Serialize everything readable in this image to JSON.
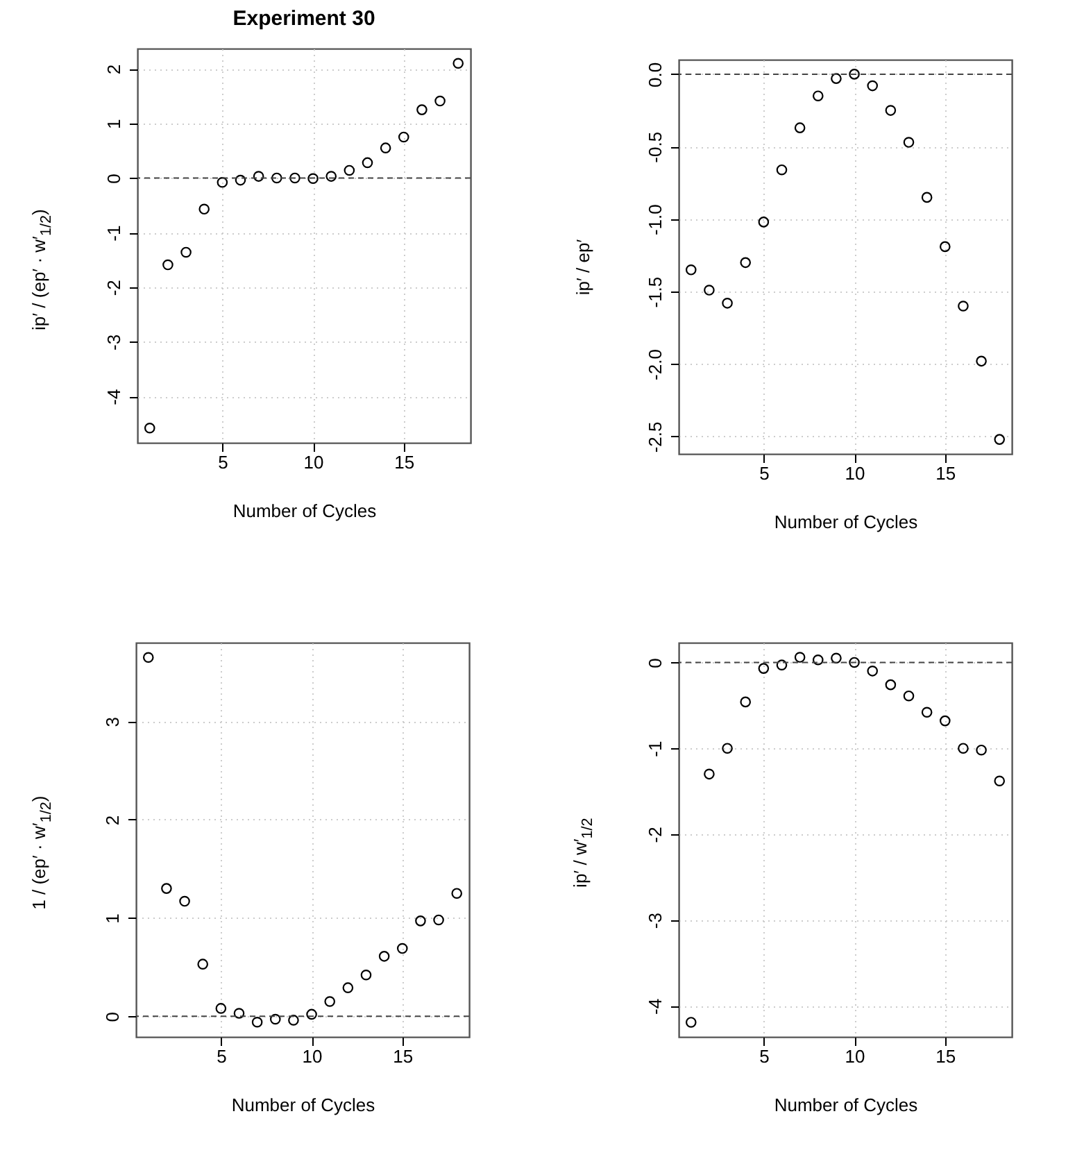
{
  "chart_data": [
    {
      "type": "scatter",
      "title": "Experiment 30",
      "xlabel": "Number of Cycles",
      "ylabel": "ip′ / (ep′ · w′$_{1/2}$)",
      "x": [
        1,
        2,
        3,
        4,
        5,
        6,
        7,
        8,
        9,
        10,
        11,
        12,
        13,
        14,
        15,
        16,
        17,
        18
      ],
      "values": [
        -4.58,
        -1.59,
        -1.36,
        -0.57,
        -0.08,
        -0.04,
        0.03,
        0,
        0,
        -0.01,
        0.03,
        0.14,
        0.28,
        0.55,
        0.75,
        1.25,
        1.41,
        2.1
      ],
      "color": "#000000",
      "marker": "circle",
      "xlim": [
        0.32,
        18.68
      ],
      "xticks": [
        5,
        10,
        15
      ],
      "ylim": [
        -4.85,
        2.37
      ],
      "yticks": [
        -4,
        -3,
        -2,
        -1,
        0,
        1,
        2
      ],
      "grid": true,
      "ref_lines": [
        {
          "axis": "y",
          "value": 0,
          "color": "#444444",
          "line_style": "dashed"
        }
      ]
    },
    {
      "type": "scatter",
      "xlabel": "Number of Cycles",
      "ylabel": "ip′ / ep′",
      "x": [
        1,
        2,
        3,
        4,
        5,
        6,
        7,
        8,
        9,
        10,
        11,
        12,
        13,
        14,
        15,
        16,
        17,
        18
      ],
      "values": [
        -1.35,
        -1.49,
        -1.58,
        -1.3,
        -1.02,
        -0.66,
        -0.37,
        -0.15,
        -0.03,
        0,
        -0.08,
        -0.25,
        -0.47,
        -0.85,
        -1.19,
        -1.6,
        -1.98,
        -2.52
      ],
      "color": "#000000",
      "marker": "circle",
      "xlim": [
        0.32,
        18.68
      ],
      "xticks": [
        5,
        10,
        15
      ],
      "ylim": [
        -2.62,
        0.1
      ],
      "yticks": [
        {
          "value": -2.5,
          "label": "-2.5"
        },
        {
          "value": -2,
          "label": "-2.0"
        },
        {
          "value": -1.5,
          "label": "-1.5"
        },
        {
          "value": -1,
          "label": "-1.0"
        },
        {
          "value": -0.5,
          "label": "-0.5"
        },
        {
          "value": 0,
          "label": "0.0"
        }
      ],
      "grid": true,
      "ref_lines": [
        {
          "axis": "y",
          "value": 0,
          "color": "#444444",
          "line_style": "dashed"
        }
      ]
    },
    {
      "type": "scatter",
      "xlabel": "Number of Cycles",
      "ylabel": "1 / (ep′ · w′$_{1/2}$)",
      "x": [
        1,
        2,
        3,
        4,
        5,
        6,
        7,
        8,
        9,
        10,
        11,
        12,
        13,
        14,
        15,
        16,
        17,
        18
      ],
      "values": [
        3.65,
        1.3,
        1.17,
        0.53,
        0.08,
        0.03,
        -0.06,
        -0.03,
        -0.04,
        0.02,
        0.15,
        0.29,
        0.42,
        0.61,
        0.69,
        0.97,
        0.98,
        1.25
      ],
      "color": "#000000",
      "marker": "circle",
      "xlim": [
        0.32,
        18.68
      ],
      "xticks": [
        5,
        10,
        15
      ],
      "ylim": [
        -0.21,
        3.8
      ],
      "yticks": [
        0,
        1,
        2,
        3
      ],
      "grid": true,
      "ref_lines": [
        {
          "axis": "y",
          "value": 0,
          "color": "#444444",
          "line_style": "dashed"
        }
      ]
    },
    {
      "type": "scatter",
      "xlabel": "Number of Cycles",
      "ylabel": "ip′ / w′$_{1/2}$",
      "x": [
        1,
        2,
        3,
        4,
        5,
        6,
        7,
        8,
        9,
        10,
        11,
        12,
        13,
        14,
        15,
        16,
        17,
        18
      ],
      "values": [
        -4.19,
        -1.3,
        -1,
        -0.46,
        -0.07,
        -0.03,
        0.06,
        0.03,
        0.05,
        0,
        -0.1,
        -0.26,
        -0.39,
        -0.58,
        -0.68,
        -1,
        -1.02,
        -1.38
      ],
      "color": "#000000",
      "marker": "circle",
      "xlim": [
        0.32,
        18.68
      ],
      "xticks": [
        5,
        10,
        15
      ],
      "ylim": [
        -4.36,
        0.23
      ],
      "yticks": [
        -4,
        -3,
        -2,
        -1,
        0
      ],
      "grid": true,
      "ref_lines": [
        {
          "axis": "y",
          "value": 0,
          "color": "#444444",
          "line_style": "dashed"
        }
      ]
    }
  ]
}
